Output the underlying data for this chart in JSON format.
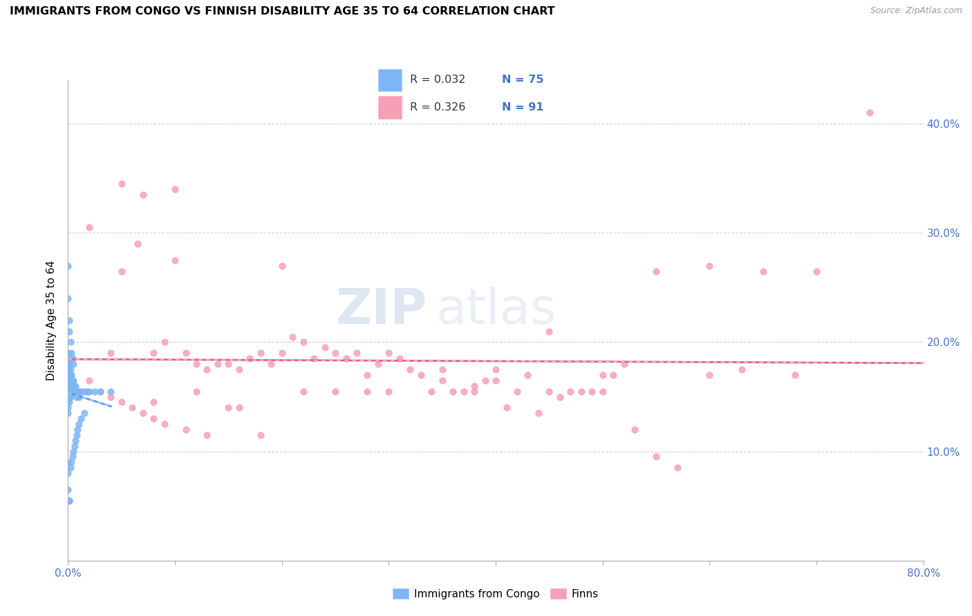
{
  "title": "IMMIGRANTS FROM CONGO VS FINNISH DISABILITY AGE 35 TO 64 CORRELATION CHART",
  "source": "Source: ZipAtlas.com",
  "ylabel": "Disability Age 35 to 64",
  "xlim": [
    0.0,
    0.8
  ],
  "ylim": [
    0.0,
    0.44
  ],
  "color_congo": "#7EB6F5",
  "color_finns": "#F5A0B5",
  "color_trend_congo": "#5599EE",
  "color_trend_finns": "#E06080",
  "watermark_zip": "ZIP",
  "watermark_atlas": "atlas",
  "congo_x": [
    0.0,
    0.0,
    0.0,
    0.0,
    0.0,
    0.0,
    0.0,
    0.0,
    0.0,
    0.0,
    0.0,
    0.0,
    0.001,
    0.001,
    0.001,
    0.001,
    0.001,
    0.001,
    0.001,
    0.001,
    0.002,
    0.002,
    0.002,
    0.002,
    0.002,
    0.002,
    0.003,
    0.003,
    0.003,
    0.003,
    0.004,
    0.004,
    0.004,
    0.005,
    0.005,
    0.005,
    0.006,
    0.006,
    0.007,
    0.007,
    0.008,
    0.008,
    0.009,
    0.01,
    0.01,
    0.012,
    0.015,
    0.018,
    0.02,
    0.025,
    0.03,
    0.04,
    0.0,
    0.0,
    0.001,
    0.001,
    0.002,
    0.003,
    0.004,
    0.005,
    0.0,
    0.0,
    0.0,
    0.001,
    0.001,
    0.002,
    0.003,
    0.004,
    0.005,
    0.006,
    0.007,
    0.008,
    0.009,
    0.01,
    0.012,
    0.015
  ],
  "congo_y": [
    0.19,
    0.185,
    0.18,
    0.175,
    0.17,
    0.165,
    0.16,
    0.155,
    0.15,
    0.145,
    0.14,
    0.135,
    0.18,
    0.175,
    0.17,
    0.165,
    0.16,
    0.155,
    0.15,
    0.145,
    0.175,
    0.17,
    0.165,
    0.16,
    0.155,
    0.15,
    0.17,
    0.165,
    0.16,
    0.155,
    0.165,
    0.16,
    0.155,
    0.165,
    0.16,
    0.155,
    0.16,
    0.155,
    0.16,
    0.155,
    0.155,
    0.15,
    0.155,
    0.155,
    0.15,
    0.155,
    0.155,
    0.155,
    0.155,
    0.155,
    0.155,
    0.155,
    0.27,
    0.24,
    0.22,
    0.21,
    0.2,
    0.19,
    0.185,
    0.18,
    0.09,
    0.08,
    0.065,
    0.055,
    0.055,
    0.085,
    0.09,
    0.095,
    0.1,
    0.105,
    0.11,
    0.115,
    0.12,
    0.125,
    0.13,
    0.135
  ],
  "finns_x": [
    0.02,
    0.04,
    0.05,
    0.065,
    0.07,
    0.08,
    0.09,
    0.1,
    0.11,
    0.12,
    0.13,
    0.14,
    0.15,
    0.16,
    0.17,
    0.18,
    0.19,
    0.2,
    0.21,
    0.22,
    0.23,
    0.24,
    0.25,
    0.26,
    0.27,
    0.28,
    0.29,
    0.3,
    0.31,
    0.32,
    0.33,
    0.34,
    0.35,
    0.36,
    0.37,
    0.38,
    0.39,
    0.4,
    0.41,
    0.42,
    0.43,
    0.44,
    0.45,
    0.46,
    0.47,
    0.48,
    0.49,
    0.5,
    0.51,
    0.52,
    0.53,
    0.55,
    0.57,
    0.6,
    0.63,
    0.65,
    0.68,
    0.7,
    0.05,
    0.08,
    0.1,
    0.12,
    0.15,
    0.18,
    0.2,
    0.22,
    0.25,
    0.28,
    0.3,
    0.35,
    0.4,
    0.45,
    0.5,
    0.55,
    0.6,
    0.02,
    0.03,
    0.04,
    0.05,
    0.06,
    0.07,
    0.08,
    0.09,
    0.11,
    0.13,
    0.16,
    0.38,
    0.75
  ],
  "finns_y": [
    0.305,
    0.19,
    0.345,
    0.29,
    0.335,
    0.19,
    0.2,
    0.275,
    0.19,
    0.18,
    0.175,
    0.18,
    0.18,
    0.175,
    0.185,
    0.19,
    0.18,
    0.19,
    0.205,
    0.2,
    0.185,
    0.195,
    0.19,
    0.185,
    0.19,
    0.17,
    0.18,
    0.19,
    0.185,
    0.175,
    0.17,
    0.155,
    0.165,
    0.155,
    0.155,
    0.16,
    0.165,
    0.175,
    0.14,
    0.155,
    0.17,
    0.135,
    0.155,
    0.15,
    0.155,
    0.155,
    0.155,
    0.155,
    0.17,
    0.18,
    0.12,
    0.095,
    0.085,
    0.17,
    0.175,
    0.265,
    0.17,
    0.265,
    0.265,
    0.145,
    0.34,
    0.155,
    0.14,
    0.115,
    0.27,
    0.155,
    0.155,
    0.155,
    0.155,
    0.175,
    0.165,
    0.21,
    0.17,
    0.265,
    0.27,
    0.165,
    0.155,
    0.15,
    0.145,
    0.14,
    0.135,
    0.13,
    0.125,
    0.12,
    0.115,
    0.14,
    0.155,
    0.41
  ]
}
